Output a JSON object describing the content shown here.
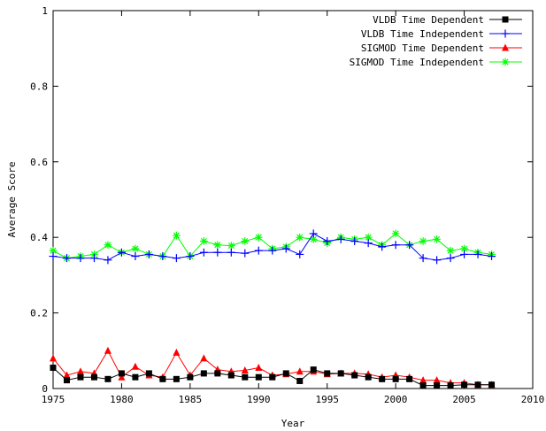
{
  "chart_data": {
    "type": "line",
    "xlabel": "Year",
    "ylabel": "Average Score",
    "xlim": [
      1975,
      2010
    ],
    "ylim": [
      0,
      1
    ],
    "x_ticks": [
      "1975",
      "1980",
      "1985",
      "1990",
      "1995",
      "2000",
      "2005",
      "2010"
    ],
    "y_ticks": [
      "0",
      "0.2",
      "0.4",
      "0.6",
      "0.8",
      "1"
    ],
    "grid": false,
    "legend_position": "top-right",
    "x": [
      1975,
      1976,
      1977,
      1978,
      1979,
      1980,
      1981,
      1982,
      1983,
      1984,
      1985,
      1986,
      1987,
      1988,
      1989,
      1990,
      1991,
      1992,
      1993,
      1994,
      1995,
      1996,
      1997,
      1998,
      1999,
      2000,
      2001,
      2002,
      2003,
      2004,
      2005,
      2006,
      2007
    ],
    "series": [
      {
        "name": "VLDB Time Dependent",
        "color": "#000000",
        "marker": "square",
        "values": [
          0.055,
          0.022,
          0.03,
          0.03,
          0.025,
          0.04,
          0.03,
          0.04,
          0.025,
          0.025,
          0.03,
          0.04,
          0.04,
          0.035,
          0.03,
          0.03,
          0.03,
          0.04,
          0.02,
          0.05,
          0.04,
          0.04,
          0.035,
          0.03,
          0.025,
          0.025,
          0.025,
          0.008,
          0.008,
          0.008,
          0.01,
          0.01,
          0.01
        ]
      },
      {
        "name": "VLDB Time Independent",
        "color": "#0000ff",
        "marker": "plus",
        "values": [
          0.35,
          0.345,
          0.345,
          0.345,
          0.34,
          0.36,
          0.35,
          0.355,
          0.35,
          0.345,
          0.35,
          0.36,
          0.36,
          0.36,
          0.358,
          0.365,
          0.365,
          0.37,
          0.355,
          0.41,
          0.39,
          0.395,
          0.39,
          0.385,
          0.375,
          0.38,
          0.38,
          0.345,
          0.34,
          0.345,
          0.355,
          0.355,
          0.35
        ]
      },
      {
        "name": "SIGMOD Time Dependent",
        "color": "#ff0000",
        "marker": "triangle",
        "values": [
          0.08,
          0.035,
          0.045,
          0.04,
          0.1,
          0.03,
          0.058,
          0.035,
          0.03,
          0.095,
          0.035,
          0.08,
          0.05,
          0.045,
          0.048,
          0.055,
          0.035,
          0.038,
          0.045,
          0.045,
          0.038,
          0.04,
          0.04,
          0.038,
          0.03,
          0.035,
          0.03,
          0.022,
          0.022,
          0.015,
          0.015,
          0.01,
          0.01
        ]
      },
      {
        "name": "SIGMOD Time Independent",
        "color": "#00ff00",
        "marker": "star",
        "values": [
          0.365,
          0.345,
          0.35,
          0.355,
          0.38,
          0.36,
          0.37,
          0.355,
          0.35,
          0.405,
          0.35,
          0.39,
          0.38,
          0.378,
          0.39,
          0.4,
          0.37,
          0.375,
          0.4,
          0.395,
          0.385,
          0.4,
          0.395,
          0.4,
          0.38,
          0.41,
          0.38,
          0.39,
          0.395,
          0.365,
          0.37,
          0.36,
          0.355
        ]
      }
    ]
  }
}
